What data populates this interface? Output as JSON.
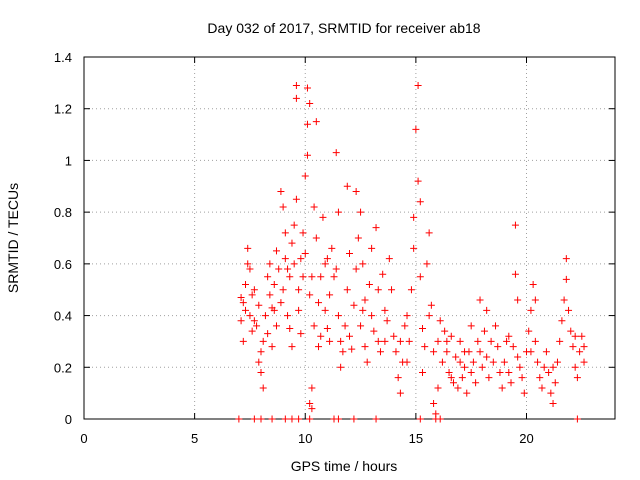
{
  "chart_data": {
    "type": "scatter",
    "title": "Day 032 of 2017, SRMTID for receiver ab18",
    "xlabel": "GPS time / hours",
    "ylabel": "SRMTID / TECUs",
    "xlim": [
      0,
      24
    ],
    "ylim": [
      0,
      1.4
    ],
    "xticks": [
      0,
      5,
      10,
      15,
      20
    ],
    "xtick_labels": [
      "0",
      "5",
      "10",
      "15",
      "20"
    ],
    "yticks": [
      0,
      0.2,
      0.4,
      0.6,
      0.8,
      1,
      1.2,
      1.4
    ],
    "ytick_labels": [
      "0",
      "0.2",
      "0.4",
      "0.6",
      "0.8",
      "1",
      "1.2",
      "1.4"
    ],
    "grid": true,
    "marker": "+",
    "color": "#ff0000",
    "series": [
      {
        "name": "SRMTID",
        "points": [
          [
            7.1,
            0.47
          ],
          [
            7.1,
            0.38
          ],
          [
            7.2,
            0.3
          ],
          [
            7.2,
            0.45
          ],
          [
            7.3,
            0.52
          ],
          [
            7.3,
            0.42
          ],
          [
            7.4,
            0.6
          ],
          [
            7.4,
            0.66
          ],
          [
            7.5,
            0.58
          ],
          [
            7.5,
            0.4
          ],
          [
            7.6,
            0.34
          ],
          [
            7.6,
            0.48
          ],
          [
            7.7,
            0.5
          ],
          [
            7.7,
            0.38
          ],
          [
            7.8,
            0.36
          ],
          [
            7.9,
            0.44
          ],
          [
            7.9,
            0.22
          ],
          [
            8.0,
            0.26
          ],
          [
            8.0,
            0.18
          ],
          [
            8.1,
            0.12
          ],
          [
            8.1,
            0.3
          ],
          [
            8.2,
            0.4
          ],
          [
            8.3,
            0.33
          ],
          [
            8.3,
            0.55
          ],
          [
            8.4,
            0.48
          ],
          [
            8.4,
            0.6
          ],
          [
            8.5,
            0.43
          ],
          [
            8.5,
            0.28
          ],
          [
            8.6,
            0.52
          ],
          [
            8.7,
            0.36
          ],
          [
            8.7,
            0.65
          ],
          [
            8.8,
            0.58
          ],
          [
            8.9,
            0.45
          ],
          [
            8.9,
            0.88
          ],
          [
            9.0,
            0.82
          ],
          [
            9.0,
            0.5
          ],
          [
            9.1,
            0.62
          ],
          [
            9.1,
            0.72
          ],
          [
            9.2,
            0.4
          ],
          [
            9.3,
            0.55
          ],
          [
            9.3,
            0.35
          ],
          [
            9.4,
            0.28
          ],
          [
            9.4,
            0.68
          ],
          [
            9.5,
            0.6
          ],
          [
            9.5,
            0.75
          ],
          [
            9.6,
            0.85
          ],
          [
            9.6,
            1.29
          ],
          [
            9.6,
            1.24
          ],
          [
            9.7,
            0.5
          ],
          [
            9.7,
            0.42
          ],
          [
            9.8,
            0.33
          ],
          [
            9.8,
            0.62
          ],
          [
            9.9,
            0.55
          ],
          [
            9.9,
            0.72
          ],
          [
            10.0,
            0.94
          ],
          [
            10.0,
            0.64
          ],
          [
            10.1,
            1.28
          ],
          [
            10.1,
            1.14
          ],
          [
            10.1,
            1.02
          ],
          [
            10.2,
            1.22
          ],
          [
            10.2,
            0.48
          ],
          [
            10.2,
            0.06
          ],
          [
            10.3,
            0.04
          ],
          [
            10.3,
            0.12
          ],
          [
            10.4,
            0.36
          ],
          [
            10.4,
            0.82
          ],
          [
            10.5,
            1.15
          ],
          [
            10.5,
            0.7
          ],
          [
            10.6,
            0.45
          ],
          [
            10.6,
            0.28
          ],
          [
            10.7,
            0.32
          ],
          [
            10.7,
            0.55
          ],
          [
            10.8,
            0.78
          ],
          [
            10.9,
            0.6
          ],
          [
            10.9,
            0.42
          ],
          [
            11.0,
            0.35
          ],
          [
            11.1,
            0.3
          ],
          [
            11.1,
            0.48
          ],
          [
            11.2,
            0.66
          ],
          [
            11.3,
            0.55
          ],
          [
            11.4,
            1.03
          ],
          [
            11.4,
            0.58
          ],
          [
            11.5,
            0.8
          ],
          [
            11.5,
            0.4
          ],
          [
            11.6,
            0.3
          ],
          [
            11.6,
            0.2
          ],
          [
            11.7,
            0.26
          ],
          [
            11.8,
            0.36
          ],
          [
            11.9,
            0.9
          ],
          [
            11.9,
            0.5
          ],
          [
            12.0,
            0.64
          ],
          [
            12.0,
            0.32
          ],
          [
            12.1,
            0.27
          ],
          [
            12.2,
            0.44
          ],
          [
            12.3,
            0.88
          ],
          [
            12.3,
            0.58
          ],
          [
            12.4,
            0.7
          ],
          [
            12.5,
            0.36
          ],
          [
            12.5,
            0.8
          ],
          [
            12.6,
            0.6
          ],
          [
            12.7,
            0.46
          ],
          [
            12.7,
            0.28
          ],
          [
            12.8,
            0.22
          ],
          [
            12.9,
            0.52
          ],
          [
            13.0,
            0.66
          ],
          [
            13.0,
            0.4
          ],
          [
            13.1,
            0.34
          ],
          [
            13.2,
            0.74
          ],
          [
            13.3,
            0.5
          ],
          [
            13.3,
            0.3
          ],
          [
            13.4,
            0.26
          ],
          [
            13.5,
            0.56
          ],
          [
            13.6,
            0.42
          ],
          [
            13.7,
            0.38
          ],
          [
            13.8,
            0.62
          ],
          [
            13.9,
            0.5
          ],
          [
            14.0,
            0.32
          ],
          [
            14.1,
            0.26
          ],
          [
            14.2,
            0.16
          ],
          [
            14.3,
            0.1
          ],
          [
            14.3,
            0.3
          ],
          [
            14.4,
            0.22
          ],
          [
            14.5,
            0.36
          ],
          [
            14.6,
            0.4
          ],
          [
            14.7,
            0.3
          ],
          [
            14.8,
            0.5
          ],
          [
            14.9,
            0.78
          ],
          [
            14.9,
            0.66
          ],
          [
            15.0,
            1.12
          ],
          [
            15.1,
            1.29
          ],
          [
            15.1,
            0.92
          ],
          [
            15.2,
            0.84
          ],
          [
            15.2,
            0.55
          ],
          [
            15.3,
            0.35
          ],
          [
            15.3,
            0.18
          ],
          [
            15.4,
            0.28
          ],
          [
            15.5,
            0.6
          ],
          [
            15.6,
            0.72
          ],
          [
            15.7,
            0.44
          ],
          [
            15.8,
            0.26
          ],
          [
            15.8,
            0.06
          ],
          [
            15.9,
            0.02
          ],
          [
            16.0,
            0.12
          ],
          [
            16.0,
            0.3
          ],
          [
            16.1,
            0.38
          ],
          [
            16.2,
            0.22
          ],
          [
            16.3,
            0.34
          ],
          [
            16.4,
            0.26
          ],
          [
            16.5,
            0.18
          ],
          [
            16.6,
            0.32
          ],
          [
            16.6,
            0.16
          ],
          [
            16.7,
            0.14
          ],
          [
            16.8,
            0.24
          ],
          [
            16.9,
            0.12
          ],
          [
            17.0,
            0.22
          ],
          [
            17.0,
            0.3
          ],
          [
            17.1,
            0.16
          ],
          [
            17.2,
            0.2
          ],
          [
            17.3,
            0.1
          ],
          [
            17.4,
            0.26
          ],
          [
            17.5,
            0.36
          ],
          [
            17.5,
            0.18
          ],
          [
            17.6,
            0.22
          ],
          [
            17.7,
            0.14
          ],
          [
            17.8,
            0.3
          ],
          [
            17.9,
            0.46
          ],
          [
            17.9,
            0.26
          ],
          [
            18.0,
            0.2
          ],
          [
            18.1,
            0.34
          ],
          [
            18.2,
            0.24
          ],
          [
            18.3,
            0.16
          ],
          [
            18.4,
            0.3
          ],
          [
            18.5,
            0.22
          ],
          [
            18.6,
            0.36
          ],
          [
            18.7,
            0.28
          ],
          [
            18.8,
            0.18
          ],
          [
            18.9,
            0.12
          ],
          [
            19.0,
            0.22
          ],
          [
            19.1,
            0.3
          ],
          [
            19.2,
            0.18
          ],
          [
            19.3,
            0.14
          ],
          [
            19.4,
            0.28
          ],
          [
            19.5,
            0.75
          ],
          [
            19.5,
            0.56
          ],
          [
            19.6,
            0.46
          ],
          [
            19.6,
            0.24
          ],
          [
            19.7,
            0.2
          ],
          [
            19.8,
            0.16
          ],
          [
            19.9,
            0.1
          ],
          [
            20.0,
            0.26
          ],
          [
            20.1,
            0.34
          ],
          [
            20.2,
            0.42
          ],
          [
            20.3,
            0.52
          ],
          [
            20.4,
            0.46
          ],
          [
            20.4,
            0.3
          ],
          [
            20.5,
            0.22
          ],
          [
            20.6,
            0.16
          ],
          [
            20.7,
            0.12
          ],
          [
            20.8,
            0.2
          ],
          [
            20.9,
            0.26
          ],
          [
            21.0,
            0.18
          ],
          [
            21.1,
            0.1
          ],
          [
            21.2,
            0.06
          ],
          [
            21.3,
            0.14
          ],
          [
            21.4,
            0.22
          ],
          [
            21.5,
            0.3
          ],
          [
            21.6,
            0.38
          ],
          [
            21.7,
            0.46
          ],
          [
            21.8,
            0.62
          ],
          [
            21.8,
            0.54
          ],
          [
            21.9,
            0.42
          ],
          [
            22.0,
            0.34
          ],
          [
            22.1,
            0.28
          ],
          [
            22.2,
            0.2
          ],
          [
            22.3,
            0.16
          ],
          [
            22.4,
            0.26
          ],
          [
            22.5,
            0.32
          ],
          [
            22.6,
            0.28
          ],
          [
            22.6,
            0.22
          ],
          [
            8.6,
            0.42
          ],
          [
            9.2,
            0.58
          ],
          [
            10.3,
            0.55
          ],
          [
            11.0,
            0.62
          ],
          [
            12.6,
            0.42
          ],
          [
            13.6,
            0.3
          ],
          [
            14.6,
            0.22
          ],
          [
            15.6,
            0.4
          ],
          [
            16.4,
            0.3
          ],
          [
            17.2,
            0.26
          ],
          [
            18.2,
            0.42
          ],
          [
            19.2,
            0.32
          ],
          [
            20.2,
            0.26
          ],
          [
            21.2,
            0.2
          ],
          [
            22.2,
            0.32
          ],
          [
            7.0,
            0.0
          ],
          [
            7.7,
            0.0
          ],
          [
            8.0,
            0.0
          ],
          [
            8.5,
            0.0
          ],
          [
            9.1,
            0.0
          ],
          [
            9.4,
            0.0
          ],
          [
            9.7,
            0.0
          ],
          [
            10.2,
            0.0
          ],
          [
            11.3,
            0.0
          ],
          [
            11.5,
            0.0
          ],
          [
            12.2,
            0.0
          ],
          [
            13.2,
            0.0
          ],
          [
            15.2,
            0.0
          ],
          [
            15.9,
            0.0
          ],
          [
            16.1,
            0.0
          ],
          [
            22.3,
            0.0
          ]
        ]
      }
    ]
  }
}
